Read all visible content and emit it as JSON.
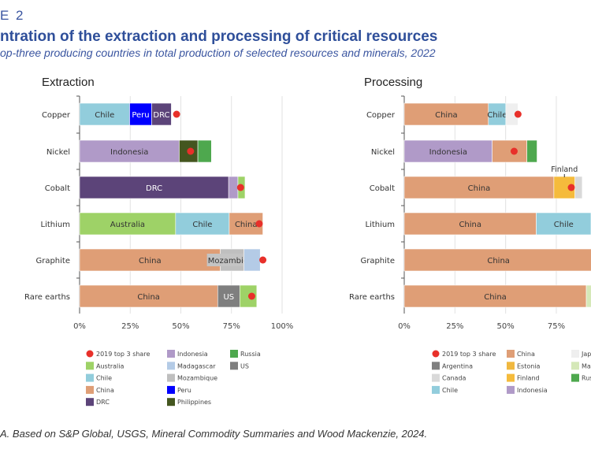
{
  "header": {
    "figure_label": "E 2",
    "title": "ntration of the extraction and processing of critical resources",
    "subtitle": "op-three producing countries in total production of selected resources and minerals, 2022"
  },
  "source": "A. Based on S&P Global, USGS, Mineral Commodity Summaries and Wood Mackenzie, 2024.",
  "colors": {
    "Chile": "#92cddc",
    "Peru": "#0000ff",
    "DRC": "#5c4479",
    "Indonesia": "#b09ac8",
    "Philippines": "#44561f",
    "Russia": "#4ea84e",
    "Australia": "#9ed267",
    "China": "#df9e76",
    "Mozambique": "#bfbfbf",
    "Madagascar": "#b4cbe6",
    "US": "#7f7f7f",
    "Japan": "#efefef",
    "Canada": "#d9d9d9",
    "Finland": "#f5bb3c",
    "Estonia": "#f0b840",
    "Malaysia": "#d5e8b8",
    "Argentina": "#808080",
    "dot": "#e8302a"
  },
  "chart_data": [
    {
      "type": "bar",
      "orientation": "horizontal",
      "stacked": true,
      "title": "Extraction",
      "xlim": [
        0,
        100
      ],
      "xticks": [
        "0%",
        "25%",
        "50%",
        "75%",
        "100%"
      ],
      "grid": true,
      "categories": [
        "Copper",
        "Nickel",
        "Cobalt",
        "Lithium",
        "Graphite",
        "Rare earths"
      ],
      "rows": [
        {
          "segments": [
            {
              "country": "Chile",
              "value": 24.7,
              "label": "Chile"
            },
            {
              "country": "Peru",
              "value": 10.9,
              "label": "Peru"
            },
            {
              "country": "DRC",
              "value": 9.7,
              "label": "DRC"
            }
          ],
          "share_2019": 47.9
        },
        {
          "segments": [
            {
              "country": "Indonesia",
              "value": 49.2,
              "label": "Indonesia"
            },
            {
              "country": "Philippines",
              "value": 9.2
            },
            {
              "country": "Russia",
              "value": 6.7
            }
          ],
          "share_2019": 54.8
        },
        {
          "segments": [
            {
              "country": "DRC",
              "value": 73.6,
              "label": "DRC"
            },
            {
              "country": "Indonesia",
              "value": 4.6
            },
            {
              "country": "Australia",
              "value": 3.5
            }
          ],
          "share_2019": 79.5
        },
        {
          "segments": [
            {
              "country": "Australia",
              "value": 47.4,
              "label": "Australia"
            },
            {
              "country": "Chile",
              "value": 26.5,
              "label": "Chile"
            },
            {
              "country": "China",
              "value": 16.6,
              "label": "China"
            }
          ],
          "share_2019": 88.7
        },
        {
          "segments": [
            {
              "country": "China",
              "value": 69.5,
              "label": "China"
            },
            {
              "country": "Mozambique",
              "value": 11.7,
              "label": "Mozambique"
            },
            {
              "country": "Madagascar",
              "value": 8.0
            }
          ],
          "share_2019": 90.5
        },
        {
          "segments": [
            {
              "country": "China",
              "value": 68.2,
              "label": "China"
            },
            {
              "country": "US",
              "value": 10.9,
              "label": "US"
            },
            {
              "country": "Australia",
              "value": 8.4
            }
          ],
          "share_2019": 85.0
        }
      ],
      "legend": [
        "2019 top 3 share",
        "Australia",
        "Chile",
        "China",
        "DRC",
        "Indonesia",
        "Madagascar",
        "Mozambique",
        "Peru",
        "Philippines",
        "Russia",
        "US"
      ]
    },
    {
      "type": "bar",
      "orientation": "horizontal",
      "stacked": true,
      "title": "Processing",
      "xlim": [
        0,
        100
      ],
      "xticks": [
        "0%",
        "25%",
        "50%",
        "75%"
      ],
      "grid": true,
      "categories": [
        "Copper",
        "Nickel",
        "Cobalt",
        "Lithium",
        "Graphite",
        "Rare earths"
      ],
      "rows": [
        {
          "segments": [
            {
              "country": "China",
              "value": 41.5,
              "label": "China"
            },
            {
              "country": "Chile",
              "value": 8.6,
              "label": "Chile"
            },
            {
              "country": "Japan",
              "value": 6.0
            }
          ],
          "share_2019": 56.1
        },
        {
          "segments": [
            {
              "country": "Indonesia",
              "value": 43.4,
              "label": "Indonesia"
            },
            {
              "country": "China",
              "value": 17.1
            },
            {
              "country": "Russia",
              "value": 5.0
            }
          ],
          "share_2019": 54.2
        },
        {
          "segments": [
            {
              "country": "China",
              "value": 73.8,
              "label": "China"
            },
            {
              "country": "Finland",
              "value": 10.4
            },
            {
              "country": "Canada",
              "value": 3.6
            }
          ],
          "share_2019": 82.4,
          "annotation": "Finland"
        },
        {
          "segments": [
            {
              "country": "China",
              "value": 65.1,
              "label": "China"
            },
            {
              "country": "Chile",
              "value": 27,
              "label": "Chile"
            }
          ]
        },
        {
          "segments": [
            {
              "country": "China",
              "value": 93,
              "label": "China"
            }
          ]
        },
        {
          "segments": [
            {
              "country": "China",
              "value": 89.8,
              "label": "China"
            },
            {
              "country": "Malaysia",
              "value": 4
            }
          ]
        }
      ],
      "legend": [
        "2019 top 3 share",
        "Argentina",
        "Canada",
        "Chile",
        "China",
        "Estonia",
        "Finland",
        "Indonesia",
        "Japan",
        "Malaysia",
        "Russia"
      ]
    }
  ]
}
